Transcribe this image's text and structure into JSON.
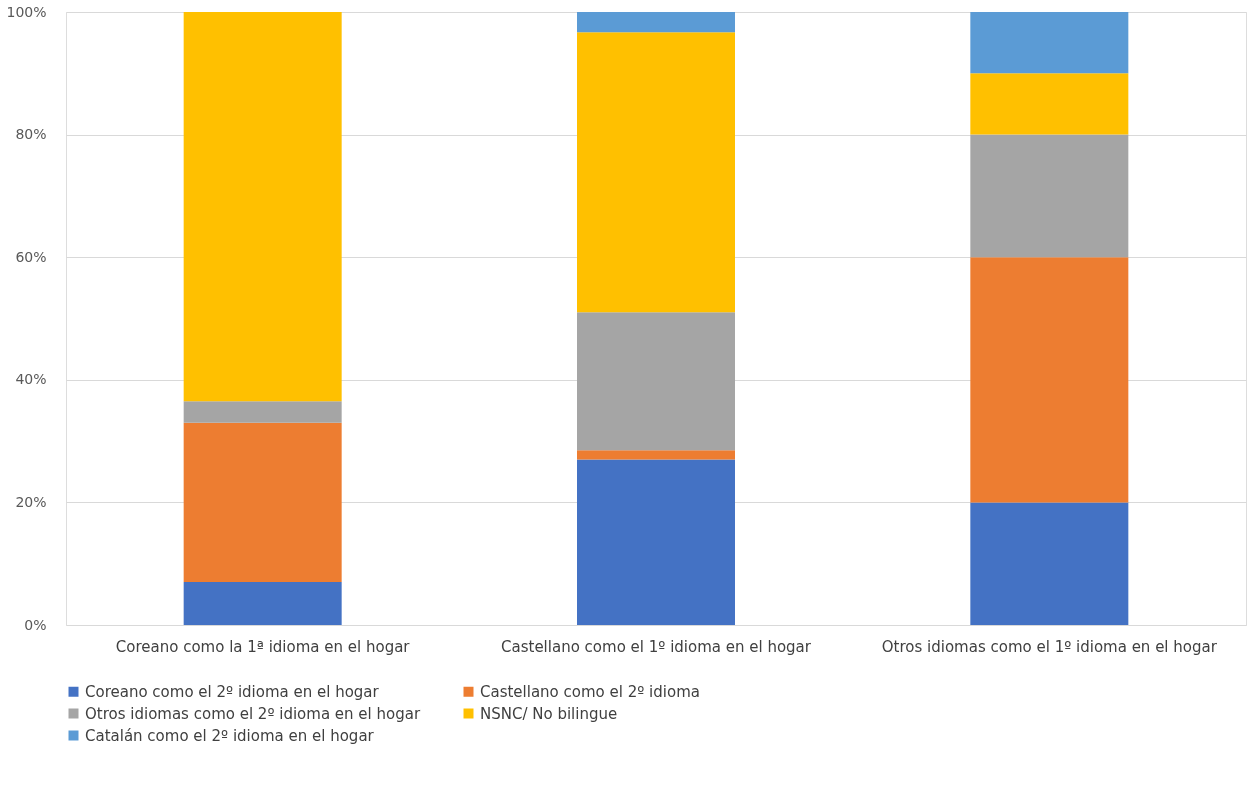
{
  "chart_data": {
    "type": "bar",
    "stacked": true,
    "categories": [
      "Coreano como la 1ª idioma en el hogar",
      "Castellano como el 1º idioma en el hogar",
      "Otros idiomas como el 1º idioma en el hogar"
    ],
    "series": [
      {
        "name": "Coreano como el 2º idioma en el hogar",
        "color": "#4472c4",
        "values": [
          7,
          27,
          20
        ]
      },
      {
        "name": "Castellano como el 2º idioma",
        "color": "#ed7d31",
        "values": [
          26,
          1.5,
          40
        ]
      },
      {
        "name": "Otros idiomas como el 2º idioma en el hogar",
        "color": "#a5a5a5",
        "values": [
          3.5,
          22.5,
          20
        ]
      },
      {
        "name": "NSNC/ No bilingue",
        "color": "#ffc000",
        "values": [
          63.5,
          45.7,
          10
        ]
      },
      {
        "name": "Catalán como el 2º idioma en el hogar",
        "color": "#5b9bd5",
        "values": [
          null,
          3.3,
          10
        ]
      }
    ],
    "ylim": [
      0,
      100
    ],
    "yticks": [
      {
        "value": 0,
        "label": "0%"
      },
      {
        "value": 20,
        "label": "20%"
      },
      {
        "value": 40,
        "label": "40%"
      },
      {
        "value": 60,
        "label": "60%"
      },
      {
        "value": 80,
        "label": "80%"
      },
      {
        "value": 100,
        "label": "100%"
      }
    ],
    "grid": "y",
    "legend": "bottom"
  }
}
